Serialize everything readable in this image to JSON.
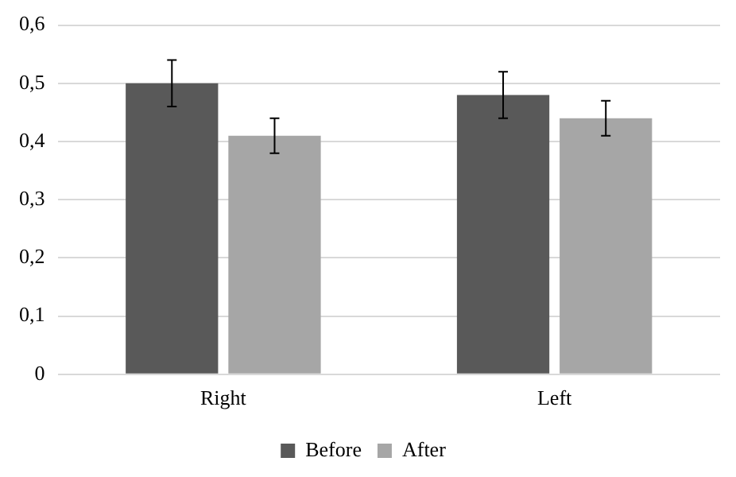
{
  "chart_data": {
    "type": "bar",
    "categories": [
      "Right",
      "Left"
    ],
    "series": [
      {
        "name": "Before",
        "color": "#595959",
        "values": [
          0.5,
          0.48
        ],
        "errors": [
          0.04,
          0.04
        ]
      },
      {
        "name": "After",
        "color": "#a6a6a6",
        "values": [
          0.41,
          0.44
        ],
        "errors": [
          0.03,
          0.03
        ]
      }
    ],
    "ylim": [
      0,
      0.6
    ],
    "yticks": [
      {
        "value": 0,
        "label": "0"
      },
      {
        "value": 0.1,
        "label": "0,1"
      },
      {
        "value": 0.2,
        "label": "0,2"
      },
      {
        "value": 0.3,
        "label": "0,3"
      },
      {
        "value": 0.4,
        "label": "0,4"
      },
      {
        "value": 0.5,
        "label": "0,5"
      },
      {
        "value": 0.6,
        "label": "0,6"
      }
    ],
    "grid": "y",
    "legend": "bottom"
  }
}
